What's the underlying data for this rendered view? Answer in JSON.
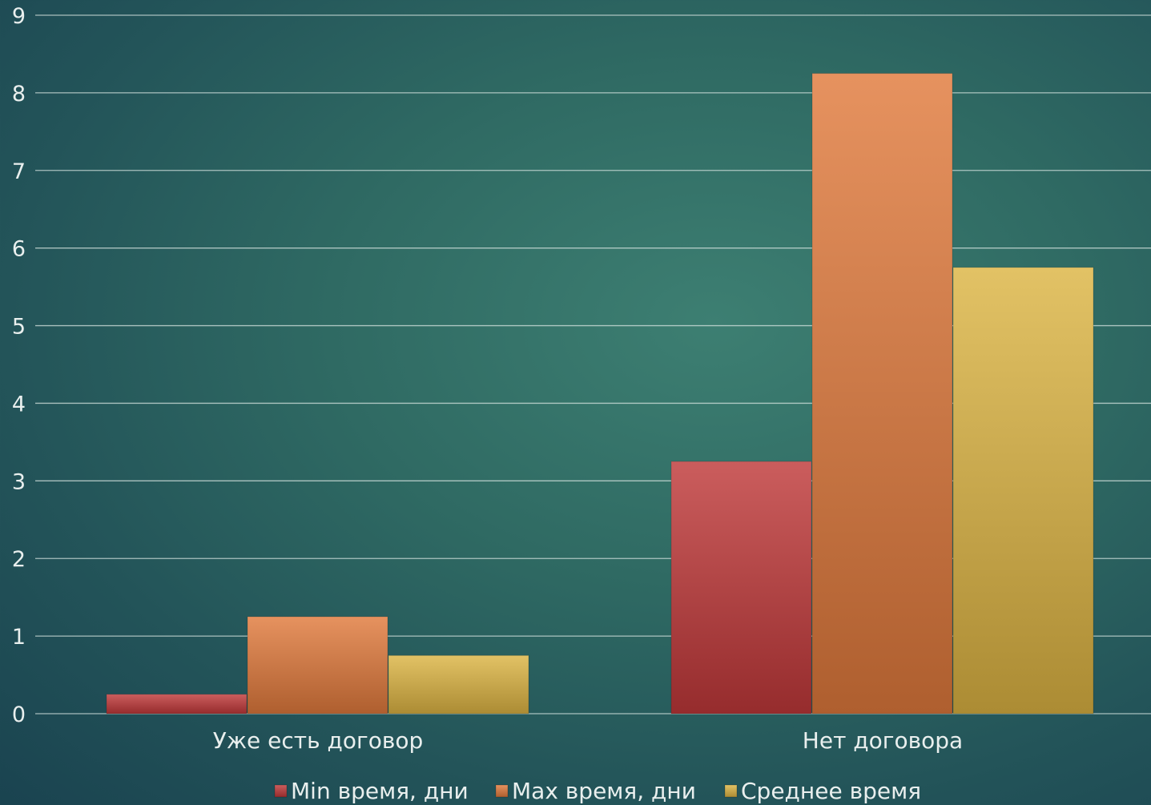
{
  "chart_data": {
    "type": "bar",
    "categories": [
      "Уже есть договор",
      "Нет договора"
    ],
    "series": [
      {
        "name": "Min время, дни",
        "values": [
          0.25,
          3.25
        ],
        "color": "#c0393a"
      },
      {
        "name": "Max время, дни",
        "values": [
          1.25,
          8.25
        ],
        "color": "#e07a3c"
      },
      {
        "name": "Среднее время",
        "values": [
          0.75,
          5.75
        ],
        "color": "#dcb443"
      }
    ],
    "ylim": [
      0,
      9
    ],
    "yticks": [
      "0",
      "1",
      "2",
      "3",
      "4",
      "5",
      "6",
      "7",
      "8",
      "9"
    ],
    "grid": true,
    "legend_position": "bottom",
    "title": "",
    "xlabel": "",
    "ylabel": ""
  }
}
